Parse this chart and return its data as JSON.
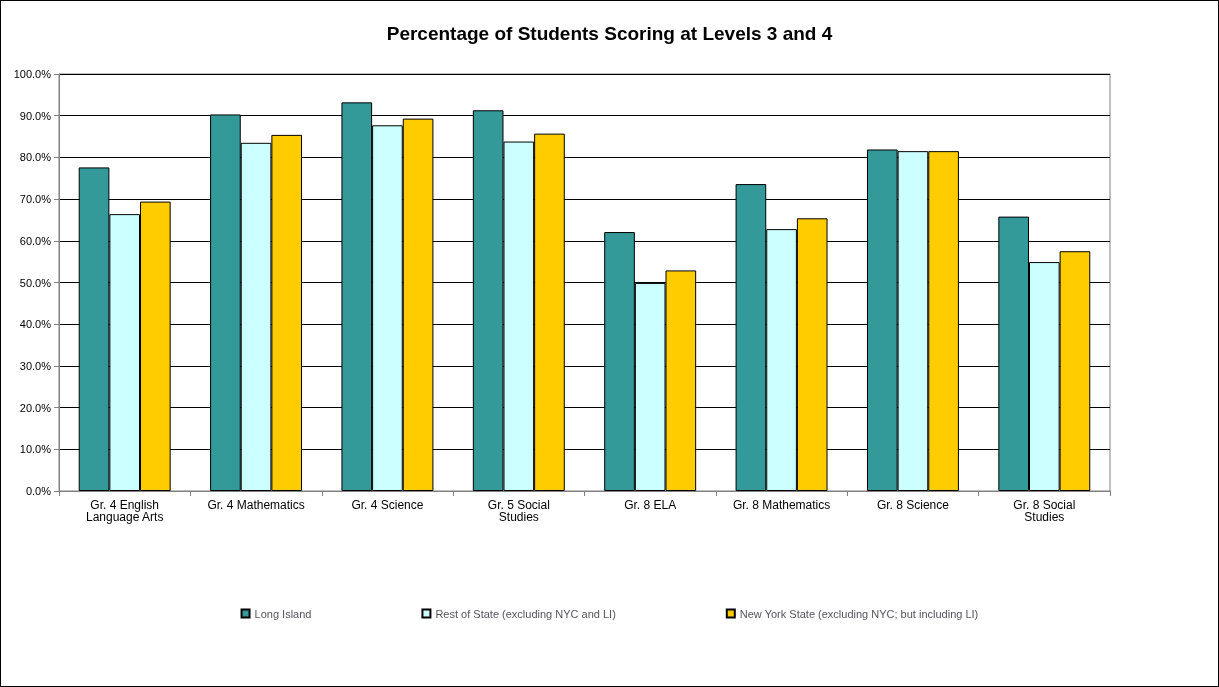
{
  "chart_data": {
    "type": "bar",
    "title": "Percentage of Students Scoring at Levels 3 and 4",
    "categories": [
      "Gr. 4 English\nLanguage Arts",
      "Gr. 4 Mathematics",
      "Gr. 4 Science",
      "Gr. 5 Social\nStudies",
      "Gr. 8 ELA",
      "Gr. 8 Mathematics",
      "Gr. 8 Science",
      "Gr. 8 Social\nStudies"
    ],
    "series": [
      {
        "name": "Long Island",
        "color": "#339999",
        "values": [
          77.6,
          90.3,
          93.2,
          91.3,
          62.1,
          73.6,
          81.9,
          65.8
        ]
      },
      {
        "name": "Rest of State (excluding NYC and LI)",
        "color": "#ccffff",
        "values": [
          66.4,
          83.5,
          87.7,
          83.8,
          49.9,
          62.8,
          81.5,
          54.9
        ]
      },
      {
        "name": "New York State (excluding NYC; but including LI)",
        "color": "#ffcc00",
        "values": [
          69.4,
          85.4,
          89.3,
          85.7,
          52.9,
          65.4,
          81.5,
          57.5
        ]
      }
    ],
    "ylim": [
      0,
      100
    ],
    "yticks": [
      {
        "value": 0,
        "label": "0.0%"
      },
      {
        "value": 10,
        "label": "10.0%"
      },
      {
        "value": 20,
        "label": "20.0%"
      },
      {
        "value": 30,
        "label": "30.0%"
      },
      {
        "value": 40,
        "label": "40.0%"
      },
      {
        "value": 50,
        "label": "50.0%"
      },
      {
        "value": 60,
        "label": "60.0%"
      },
      {
        "value": 70,
        "label": "70.0%"
      },
      {
        "value": 80,
        "label": "80.0%"
      },
      {
        "value": 90,
        "label": "90.0%"
      },
      {
        "value": 100,
        "label": "100.0%"
      }
    ],
    "grid": "y",
    "legend": "bottom"
  }
}
